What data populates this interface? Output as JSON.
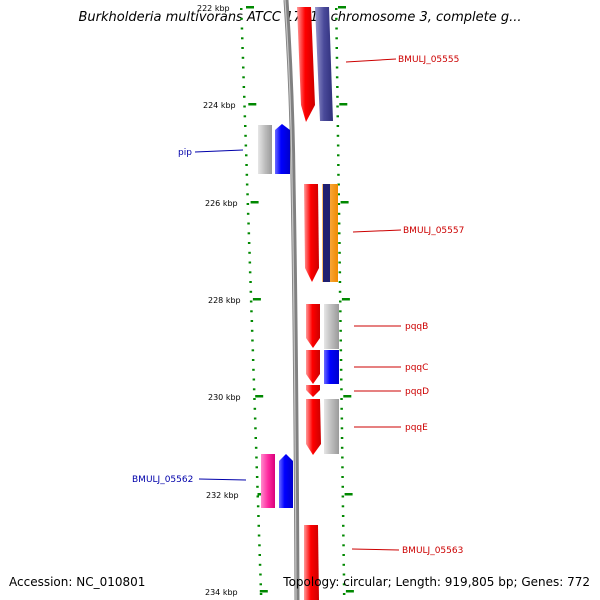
{
  "title": "Burkholderia multivorans ATCC 17616 chromosome 3, complete g...",
  "accession": "Accession: NC_010801",
  "summary": "Topology: circular; Length: 919,805 bp; Genes: 772",
  "ruler": {
    "unit": "kbp",
    "labels": [
      "222 kbp",
      "224 kbp",
      "226 kbp",
      "228 kbp",
      "230 kbp",
      "232 kbp",
      "234 kbp"
    ]
  },
  "colors": {
    "label_red": "#cc0000",
    "label_blue": "#0000aa",
    "tick_green": "#008800",
    "backbone": "#808080"
  },
  "genes": [
    {
      "label": "BMULJ_05555",
      "strand": "plus",
      "label_color": "#cc0000"
    },
    {
      "label": "pip",
      "strand": "minus",
      "label_color": "#0000aa"
    },
    {
      "label": "BMULJ_05557",
      "strand": "plus",
      "label_color": "#cc0000"
    },
    {
      "label": "pqqB",
      "strand": "plus",
      "label_color": "#cc0000"
    },
    {
      "label": "pqqC",
      "strand": "plus",
      "label_color": "#cc0000"
    },
    {
      "label": "pqqD",
      "strand": "plus",
      "label_color": "#cc0000"
    },
    {
      "label": "pqqE",
      "strand": "plus",
      "label_color": "#cc0000"
    },
    {
      "label": "BMULJ_05562",
      "strand": "minus",
      "label_color": "#0000aa"
    },
    {
      "label": "BMULJ_05563",
      "strand": "plus",
      "label_color": "#cc0000"
    }
  ]
}
